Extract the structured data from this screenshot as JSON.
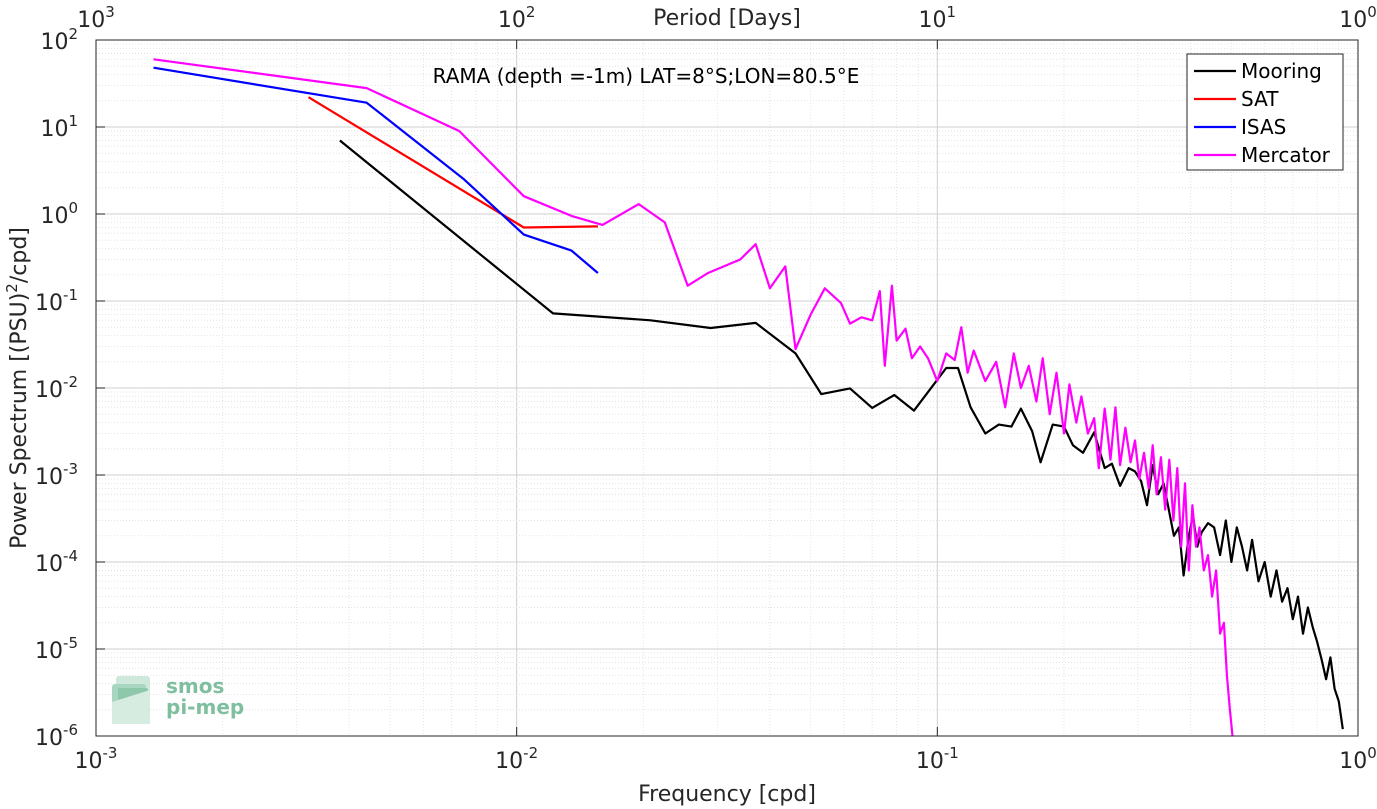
{
  "chart_data": {
    "type": "line",
    "title": "RAMA (depth =-1m) LAT=8°S;LON=80.5°E",
    "xlabel": "Frequency [cpd]",
    "ylabel": "Power Spectrum [(PSU)²/cpd]",
    "ylabel_base": "Power Spectrum [(PSU)",
    "ylabel_sup": "2",
    "ylabel_tail": "/cpd]",
    "top_xlabel": "Period [Days]",
    "x_scale": "log",
    "y_scale": "log",
    "xlim": [
      0.001,
      1
    ],
    "ylim": [
      1e-06,
      100
    ],
    "grid": true,
    "legend_position": "top-right",
    "x_ticks": [
      {
        "value": 0.001,
        "base": "10",
        "exp": "-3"
      },
      {
        "value": 0.01,
        "base": "10",
        "exp": "-2"
      },
      {
        "value": 0.1,
        "base": "10",
        "exp": "-1"
      },
      {
        "value": 1,
        "base": "10",
        "exp": "0"
      }
    ],
    "y_ticks": [
      {
        "value": 100,
        "base": "10",
        "exp": "2"
      },
      {
        "value": 10,
        "base": "10",
        "exp": "1"
      },
      {
        "value": 1,
        "base": "10",
        "exp": "0"
      },
      {
        "value": 0.1,
        "base": "10",
        "exp": "-1"
      },
      {
        "value": 0.01,
        "base": "10",
        "exp": "-2"
      },
      {
        "value": 0.001,
        "base": "10",
        "exp": "-3"
      },
      {
        "value": 0.0001,
        "base": "10",
        "exp": "-4"
      },
      {
        "value": 1e-05,
        "base": "10",
        "exp": "-5"
      },
      {
        "value": 1e-06,
        "base": "10",
        "exp": "-6"
      }
    ],
    "top_ticks": [
      {
        "value": 0.001,
        "base": "10",
        "exp": "3"
      },
      {
        "value": 0.01,
        "base": "10",
        "exp": "2"
      },
      {
        "value": 0.1,
        "base": "10",
        "exp": "1"
      },
      {
        "value": 1,
        "base": "10",
        "exp": "0"
      }
    ],
    "series": [
      {
        "name": "Mooring",
        "color": "#000000",
        "x": [
          0.0038,
          0.0122,
          0.0208,
          0.0289,
          0.037,
          0.046,
          0.053,
          0.062,
          0.07,
          0.079,
          0.088,
          0.105,
          0.112,
          0.12,
          0.13,
          0.14,
          0.15,
          0.158,
          0.168,
          0.176,
          0.188,
          0.2,
          0.21,
          0.222,
          0.236,
          0.25,
          0.26,
          0.272,
          0.285,
          0.295,
          0.305,
          0.315,
          0.325,
          0.335,
          0.345,
          0.355,
          0.365,
          0.375,
          0.385,
          0.395,
          0.405,
          0.415,
          0.425,
          0.44,
          0.455,
          0.47,
          0.485,
          0.5,
          0.515,
          0.53,
          0.545,
          0.56,
          0.58,
          0.6,
          0.62,
          0.64,
          0.66,
          0.68,
          0.7,
          0.72,
          0.74,
          0.76,
          0.78,
          0.8,
          0.82,
          0.84,
          0.86,
          0.88,
          0.9,
          0.92
        ],
        "y": [
          7.0,
          0.072,
          0.06,
          0.049,
          0.056,
          0.025,
          0.0085,
          0.0099,
          0.0059,
          0.0083,
          0.0055,
          0.017,
          0.017,
          0.006,
          0.003,
          0.0038,
          0.0036,
          0.0058,
          0.0032,
          0.0014,
          0.0038,
          0.0036,
          0.0022,
          0.0018,
          0.0031,
          0.0012,
          0.00135,
          0.00075,
          0.0012,
          0.0011,
          0.00085,
          0.00045,
          0.0013,
          0.0006,
          0.0008,
          0.0004,
          0.0002,
          0.00025,
          7e-05,
          0.00018,
          0.00035,
          0.00015,
          0.00022,
          0.00028,
          0.00025,
          0.00012,
          0.0003,
          0.0001,
          0.00025,
          0.00015,
          8e-05,
          0.00018,
          6e-05,
          0.0001,
          4e-05,
          8e-05,
          3.5e-05,
          5e-05,
          2.2e-05,
          4e-05,
          1.5e-05,
          3e-05,
          1.8e-05,
          1.2e-05,
          7.5e-06,
          4.5e-06,
          8e-06,
          3.5e-06,
          2.5e-06,
          1.2e-06
        ]
      },
      {
        "name": "SAT",
        "color": "#ff0000",
        "x": [
          0.0032,
          0.0104,
          0.0156
        ],
        "y": [
          22.0,
          0.7,
          0.72
        ]
      },
      {
        "name": "ISAS",
        "color": "#0000ff",
        "x": [
          0.00137,
          0.0044,
          0.0075,
          0.0104,
          0.0135,
          0.0156
        ],
        "y": [
          48.0,
          19.0,
          2.5,
          0.58,
          0.38,
          0.21
        ]
      },
      {
        "name": "Mercator",
        "color": "#ff00ff",
        "x": [
          0.00137,
          0.0044,
          0.0073,
          0.0104,
          0.0135,
          0.016,
          0.0195,
          0.0225,
          0.0255,
          0.0285,
          0.034,
          0.037,
          0.04,
          0.0435,
          0.046,
          0.05,
          0.054,
          0.059,
          0.062,
          0.066,
          0.07,
          0.073,
          0.075,
          0.078,
          0.08,
          0.084,
          0.087,
          0.091,
          0.095,
          0.1,
          0.105,
          0.11,
          0.114,
          0.118,
          0.122,
          0.13,
          0.138,
          0.145,
          0.152,
          0.158,
          0.165,
          0.172,
          0.178,
          0.185,
          0.192,
          0.2,
          0.206,
          0.214,
          0.22,
          0.228,
          0.236,
          0.242,
          0.25,
          0.258,
          0.265,
          0.272,
          0.28,
          0.288,
          0.295,
          0.302,
          0.31,
          0.318,
          0.325,
          0.332,
          0.34,
          0.348,
          0.356,
          0.364,
          0.372,
          0.38,
          0.388,
          0.396,
          0.404,
          0.412,
          0.42,
          0.43,
          0.44,
          0.45,
          0.46,
          0.47,
          0.48,
          0.488,
          0.496,
          0.503
        ],
        "y": [
          60.0,
          28.0,
          9.0,
          1.6,
          0.95,
          0.75,
          1.3,
          0.8,
          0.15,
          0.21,
          0.3,
          0.45,
          0.14,
          0.25,
          0.028,
          0.07,
          0.14,
          0.095,
          0.055,
          0.065,
          0.06,
          0.13,
          0.018,
          0.15,
          0.035,
          0.048,
          0.022,
          0.03,
          0.022,
          0.012,
          0.025,
          0.021,
          0.05,
          0.015,
          0.027,
          0.012,
          0.02,
          0.006,
          0.025,
          0.01,
          0.018,
          0.007,
          0.022,
          0.005,
          0.015,
          0.003,
          0.011,
          0.004,
          0.008,
          0.003,
          0.0045,
          0.0012,
          0.0058,
          0.0015,
          0.006,
          0.0013,
          0.0035,
          0.0014,
          0.0025,
          0.0009,
          0.0018,
          0.0007,
          0.0022,
          0.0006,
          0.0016,
          0.0004,
          0.0015,
          0.0003,
          0.0012,
          0.00015,
          0.0008,
          8e-05,
          0.00045,
          0.00015,
          0.00025,
          8e-05,
          0.00012,
          4e-05,
          8e-05,
          1.5e-05,
          2e-05,
          5e-06,
          2e-06,
          1e-06
        ]
      }
    ]
  },
  "logo": {
    "line1": "smos",
    "line2": "pi-mep"
  }
}
